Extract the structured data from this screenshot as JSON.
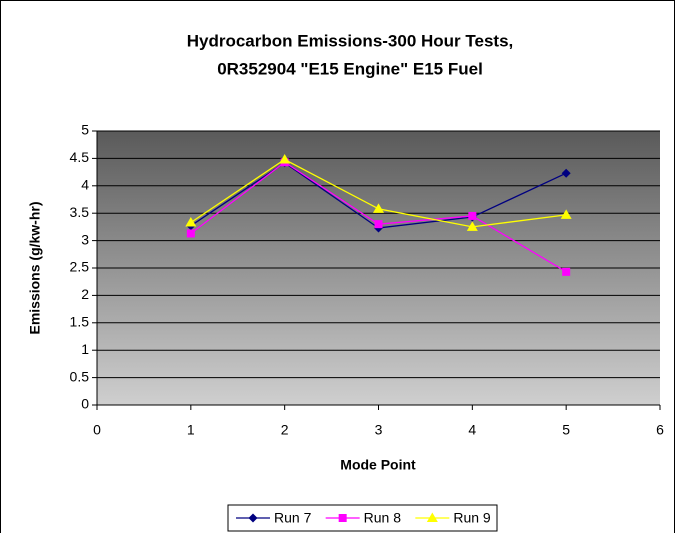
{
  "chart_data": {
    "type": "line",
    "title": [
      "Hydrocarbon Emissions-300 Hour Tests,",
      "0R352904 \"E15 Engine\" E15 Fuel"
    ],
    "x_label": "Mode Point",
    "y_label": "Emissions (g/kw-hr)",
    "x": [
      1,
      2,
      3,
      4,
      5
    ],
    "series": [
      {
        "name": "Run 7",
        "color": "#000080",
        "marker": "diamond",
        "values": [
          3.27,
          4.42,
          3.23,
          3.43,
          4.23
        ]
      },
      {
        "name": "Run 8",
        "color": "#FF00FF",
        "marker": "square",
        "values": [
          3.13,
          4.43,
          3.3,
          3.45,
          2.43
        ]
      },
      {
        "name": "Run 9",
        "color": "#FFFF00",
        "marker": "triangle",
        "values": [
          3.33,
          4.48,
          3.58,
          3.25,
          3.47
        ]
      }
    ],
    "xlim": [
      0,
      6
    ],
    "xticks": [
      0,
      1,
      2,
      3,
      4,
      5,
      6
    ],
    "ylim": [
      0,
      5
    ],
    "yticks": [
      0,
      0.5,
      1,
      1.5,
      2,
      2.5,
      3,
      3.5,
      4,
      4.5,
      5
    ],
    "grid": true,
    "legend": "bottom"
  }
}
